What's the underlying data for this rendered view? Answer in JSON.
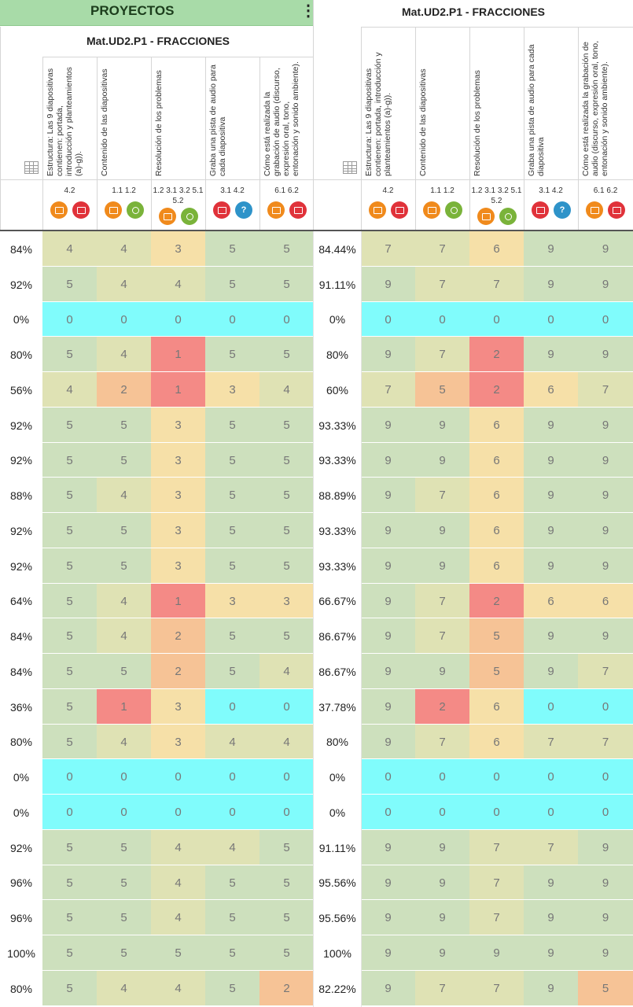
{
  "header": {
    "projects_title": "PROYECTOS",
    "menu_glyph": "⋮",
    "left_section_title": "Mat.UD2.P1 - FRACCIONES",
    "right_section_title": "Mat.UD2.P1 - FRACCIONES"
  },
  "criteria": [
    {
      "text": "Estructura: Las 9 diapositivas contienen: portada, introducción y planteamientos (a)-g)).",
      "standards": "4.2",
      "icons": [
        "presentation-icon",
        "projector-icon"
      ]
    },
    {
      "text": "Contenido de las diapositivas",
      "standards": "1.1 1.2",
      "icons": [
        "presentation-icon",
        "award-icon"
      ]
    },
    {
      "text": "Resolución de los problemas",
      "standards": "1.2 3.1 3.2 5.1 5.2",
      "icons": [
        "presentation-icon",
        "award-icon"
      ]
    },
    {
      "text": "Graba una pista de audio para cada diapositiva",
      "standards": "3.1 4.2",
      "icons": [
        "projector-icon",
        "question-icon"
      ]
    },
    {
      "text": "Cómo está realizada la grabación de audio (discurso, expresión oral, tono, entonación y sonido ambiente).",
      "standards": "6.1 6.2",
      "icons": [
        "presentation-icon",
        "projector-icon"
      ]
    }
  ],
  "colors": {
    "five": "#cde0bd",
    "four": "#dfe2b4",
    "three": "#f6e0a8",
    "two": "#f6c396",
    "one": "#f48a86",
    "zero": "#80fcfc"
  },
  "rows": [
    {
      "pct_left": "84%",
      "left": [
        4,
        4,
        3,
        5,
        5
      ],
      "pct_right": "84.44%",
      "right": [
        7,
        7,
        6,
        9,
        9
      ]
    },
    {
      "pct_left": "92%",
      "left": [
        5,
        4,
        4,
        5,
        5
      ],
      "pct_right": "91.11%",
      "right": [
        9,
        7,
        7,
        9,
        9
      ]
    },
    {
      "pct_left": "0%",
      "left": [
        0,
        0,
        0,
        0,
        0
      ],
      "pct_right": "0%",
      "right": [
        0,
        0,
        0,
        0,
        0
      ]
    },
    {
      "pct_left": "80%",
      "left": [
        5,
        4,
        1,
        5,
        5
      ],
      "pct_right": "80%",
      "right": [
        9,
        7,
        2,
        9,
        9
      ]
    },
    {
      "pct_left": "56%",
      "left": [
        4,
        2,
        1,
        3,
        4
      ],
      "pct_right": "60%",
      "right": [
        7,
        5,
        2,
        6,
        7
      ]
    },
    {
      "pct_left": "92%",
      "left": [
        5,
        5,
        3,
        5,
        5
      ],
      "pct_right": "93.33%",
      "right": [
        9,
        9,
        6,
        9,
        9
      ]
    },
    {
      "pct_left": "92%",
      "left": [
        5,
        5,
        3,
        5,
        5
      ],
      "pct_right": "93.33%",
      "right": [
        9,
        9,
        6,
        9,
        9
      ]
    },
    {
      "pct_left": "88%",
      "left": [
        5,
        4,
        3,
        5,
        5
      ],
      "pct_right": "88.89%",
      "right": [
        9,
        7,
        6,
        9,
        9
      ]
    },
    {
      "pct_left": "92%",
      "left": [
        5,
        5,
        3,
        5,
        5
      ],
      "pct_right": "93.33%",
      "right": [
        9,
        9,
        6,
        9,
        9
      ]
    },
    {
      "pct_left": "92%",
      "left": [
        5,
        5,
        3,
        5,
        5
      ],
      "pct_right": "93.33%",
      "right": [
        9,
        9,
        6,
        9,
        9
      ]
    },
    {
      "pct_left": "64%",
      "left": [
        5,
        4,
        1,
        3,
        3
      ],
      "pct_right": "66.67%",
      "right": [
        9,
        7,
        2,
        6,
        6
      ]
    },
    {
      "pct_left": "84%",
      "left": [
        5,
        4,
        2,
        5,
        5
      ],
      "pct_right": "86.67%",
      "right": [
        9,
        7,
        5,
        9,
        9
      ]
    },
    {
      "pct_left": "84%",
      "left": [
        5,
        5,
        2,
        5,
        4
      ],
      "pct_right": "86.67%",
      "right": [
        9,
        9,
        5,
        9,
        7
      ]
    },
    {
      "pct_left": "36%",
      "left": [
        5,
        1,
        3,
        0,
        0
      ],
      "pct_right": "37.78%",
      "right": [
        9,
        2,
        6,
        0,
        0
      ]
    },
    {
      "pct_left": "80%",
      "left": [
        5,
        4,
        3,
        4,
        4
      ],
      "pct_right": "80%",
      "right": [
        9,
        7,
        6,
        7,
        7
      ]
    },
    {
      "pct_left": "0%",
      "left": [
        0,
        0,
        0,
        0,
        0
      ],
      "pct_right": "0%",
      "right": [
        0,
        0,
        0,
        0,
        0
      ]
    },
    {
      "pct_left": "0%",
      "left": [
        0,
        0,
        0,
        0,
        0
      ],
      "pct_right": "0%",
      "right": [
        0,
        0,
        0,
        0,
        0
      ]
    },
    {
      "pct_left": "92%",
      "left": [
        5,
        5,
        4,
        4,
        5
      ],
      "pct_right": "91.11%",
      "right": [
        9,
        9,
        7,
        7,
        9
      ]
    },
    {
      "pct_left": "96%",
      "left": [
        5,
        5,
        4,
        5,
        5
      ],
      "pct_right": "95.56%",
      "right": [
        9,
        9,
        7,
        9,
        9
      ]
    },
    {
      "pct_left": "96%",
      "left": [
        5,
        5,
        4,
        5,
        5
      ],
      "pct_right": "95.56%",
      "right": [
        9,
        9,
        7,
        9,
        9
      ]
    },
    {
      "pct_left": "100%",
      "left": [
        5,
        5,
        5,
        5,
        5
      ],
      "pct_right": "100%",
      "right": [
        9,
        9,
        9,
        9,
        9
      ]
    },
    {
      "pct_left": "80%",
      "left": [
        5,
        4,
        4,
        5,
        2
      ],
      "pct_right": "82.22%",
      "right": [
        9,
        7,
        7,
        9,
        5
      ]
    }
  ]
}
